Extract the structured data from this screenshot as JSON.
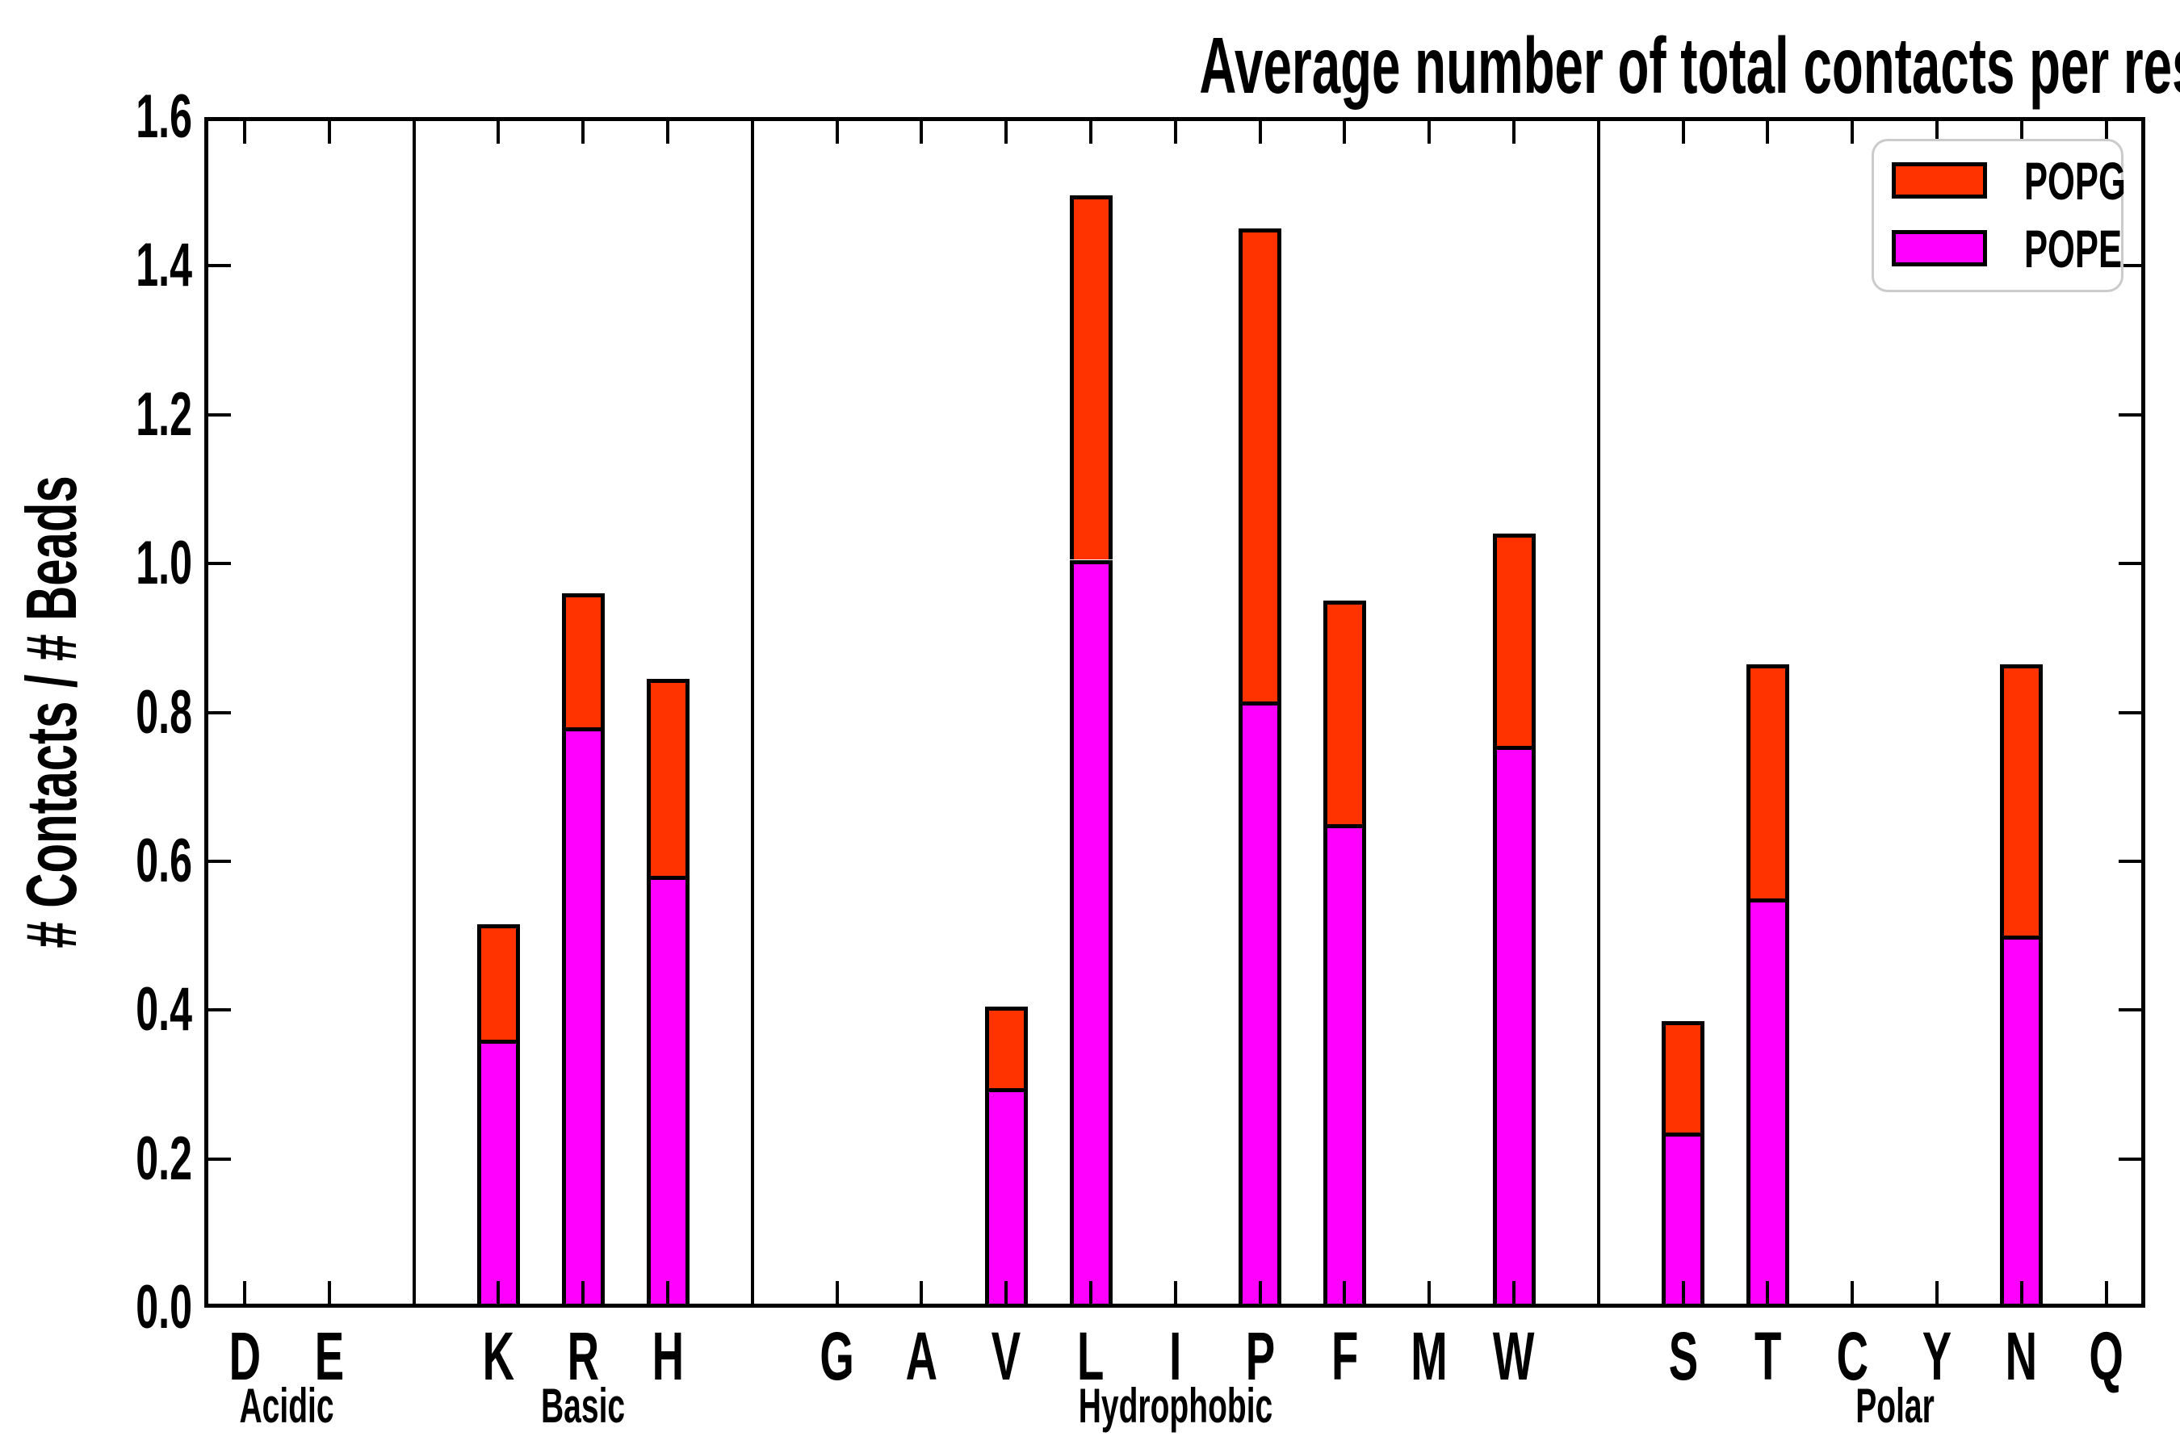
{
  "title": "Average number of total contacts per residue type per bead",
  "y_axis": {
    "label": "# Contacts / # Beads",
    "ticks": [
      "0.0",
      "0.2",
      "0.4",
      "0.6",
      "0.8",
      "1.0",
      "1.2",
      "1.4",
      "1.6"
    ],
    "min": 0.0,
    "max": 1.6
  },
  "legend": {
    "position": "upper-right",
    "entries": [
      {
        "label": "POPG",
        "color": "#ff3300"
      },
      {
        "label": "POPE",
        "color": "#ff00ff"
      }
    ]
  },
  "colors": {
    "popg": "#ff3300",
    "pope": "#ff00ff",
    "axis": "#000000",
    "legend_border": "#cbcbcb",
    "background": "#ffffff"
  },
  "chart_data": {
    "type": "bar",
    "stacked": true,
    "title": "Average number of total contacts per residue type per bead",
    "xlabel": "",
    "ylabel": "# Contacts / # Beads",
    "ylim": [
      0,
      1.6
    ],
    "ytick_interval": 0.2,
    "grid": false,
    "legend_position": "upper right",
    "categories": [
      "D",
      "E",
      "K",
      "R",
      "H",
      "G",
      "A",
      "V",
      "L",
      "I",
      "P",
      "F",
      "M",
      "W",
      "S",
      "T",
      "C",
      "Y",
      "N",
      "Q"
    ],
    "groups": [
      {
        "label": "Acidic",
        "count": 2
      },
      {
        "label": "Basic",
        "count": 3
      },
      {
        "label": "Hydrophobic",
        "count": 9
      },
      {
        "label": "Polar",
        "count": 6
      }
    ],
    "series": [
      {
        "name": "POPE",
        "color": "#ff00ff",
        "values": [
          0,
          0,
          0.36,
          0.78,
          0.58,
          0,
          0,
          0.295,
          1.005,
          0,
          0.815,
          0.65,
          0,
          0.755,
          0.235,
          0.55,
          0,
          0,
          0.5,
          0
        ]
      },
      {
        "name": "POPG",
        "color": "#ff3300",
        "values": [
          0,
          0,
          0.155,
          0.18,
          0.265,
          0,
          0,
          0.11,
          0.49,
          0,
          0.635,
          0.3,
          0,
          0.285,
          0.15,
          0.315,
          0,
          0,
          0.365,
          0
        ]
      }
    ],
    "totals": [
      0,
      0,
      0.515,
      0.96,
      0.845,
      0,
      0,
      0.405,
      1.495,
      0,
      1.45,
      0.95,
      0,
      1.04,
      0.385,
      0.865,
      0,
      0,
      0.865,
      0
    ]
  }
}
